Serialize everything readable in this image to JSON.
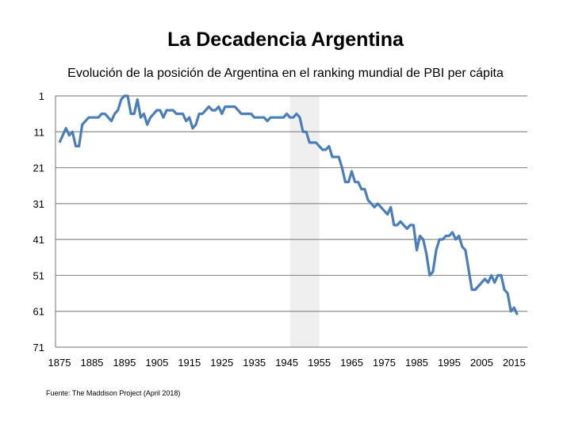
{
  "chart_data": {
    "type": "line",
    "title": "La Decadencia Argentina",
    "subtitle": "Evolución de la posición de Argentina en el ranking mundial de PBI per cápita",
    "source": "Fuente: The Maddison Project (April 2018)",
    "xlabel": "",
    "ylabel": "",
    "xlim": [
      1875,
      2016
    ],
    "ylim": [
      1,
      71
    ],
    "y_inverted": true,
    "grid": "horizontal",
    "x_ticks": [
      "1875",
      "1885",
      "1895",
      "1905",
      "1915",
      "1925",
      "1935",
      "1945",
      "1955",
      "1965",
      "1975",
      "1985",
      "1995",
      "2005",
      "2015"
    ],
    "y_ticks": [
      "1",
      "11",
      "21",
      "31",
      "41",
      "51",
      "61",
      "71"
    ],
    "shaded_period": [
      1946,
      1955
    ],
    "colors": {
      "line": "#4a7ebb",
      "shade": "#efefef",
      "grid": "#8c8c8c"
    },
    "series": [
      {
        "x": [
          1875,
          1877,
          1878,
          1879,
          1880,
          1881,
          1882,
          1884,
          1887,
          1888,
          1889,
          1891,
          1892,
          1893,
          1894,
          1895,
          1896,
          1897,
          1898,
          1899,
          1900,
          1901,
          1902,
          1903,
          1905,
          1906,
          1907,
          1908,
          1910,
          1911,
          1913,
          1914,
          1915,
          1916,
          1917,
          1918,
          1919,
          1921,
          1922,
          1923,
          1924,
          1925,
          1926,
          1929,
          1931,
          1934,
          1935,
          1938,
          1939,
          1940,
          1944,
          1945,
          1946,
          1947,
          1948,
          1949,
          1950,
          1951,
          1952,
          1954,
          1956,
          1957,
          1958,
          1959,
          1961,
          1962,
          1963,
          1964,
          1965,
          1966,
          1967,
          1968,
          1969,
          1970,
          1972,
          1973,
          1976,
          1977,
          1978,
          1979,
          1980,
          1982,
          1983,
          1984,
          1985,
          1986,
          1987,
          1988,
          1989,
          1990,
          1991,
          1992,
          1993,
          1994,
          1995,
          1996,
          1997,
          1998,
          1999,
          2000,
          2002,
          2003,
          2006,
          2007,
          2008,
          2009,
          2010,
          2011,
          2012,
          2013,
          2014,
          2015,
          2016
        ],
        "y": [
          14,
          10,
          12,
          11,
          15,
          15,
          9,
          7,
          7,
          6,
          6,
          8,
          6,
          5,
          2,
          1,
          1,
          6,
          6,
          2,
          7,
          6,
          9,
          7,
          5,
          5,
          7,
          5,
          5,
          6,
          6,
          8,
          7,
          10,
          9,
          6,
          6,
          4,
          5,
          5,
          4,
          6,
          4,
          4,
          6,
          6,
          7,
          7,
          8,
          7,
          7,
          6,
          7,
          7,
          6,
          7,
          11,
          11,
          14,
          14,
          16,
          16,
          15,
          18,
          18,
          21,
          25,
          25,
          22,
          25,
          25,
          27,
          27,
          30,
          32,
          31,
          34,
          32,
          37,
          37,
          36,
          38,
          37,
          37,
          44,
          40,
          41,
          45,
          51,
          50,
          44,
          41,
          41,
          40,
          40,
          39,
          41,
          40,
          43,
          44,
          55,
          55,
          52,
          53,
          51,
          53,
          51,
          51,
          55,
          56,
          61,
          60,
          62
        ]
      }
    ]
  }
}
